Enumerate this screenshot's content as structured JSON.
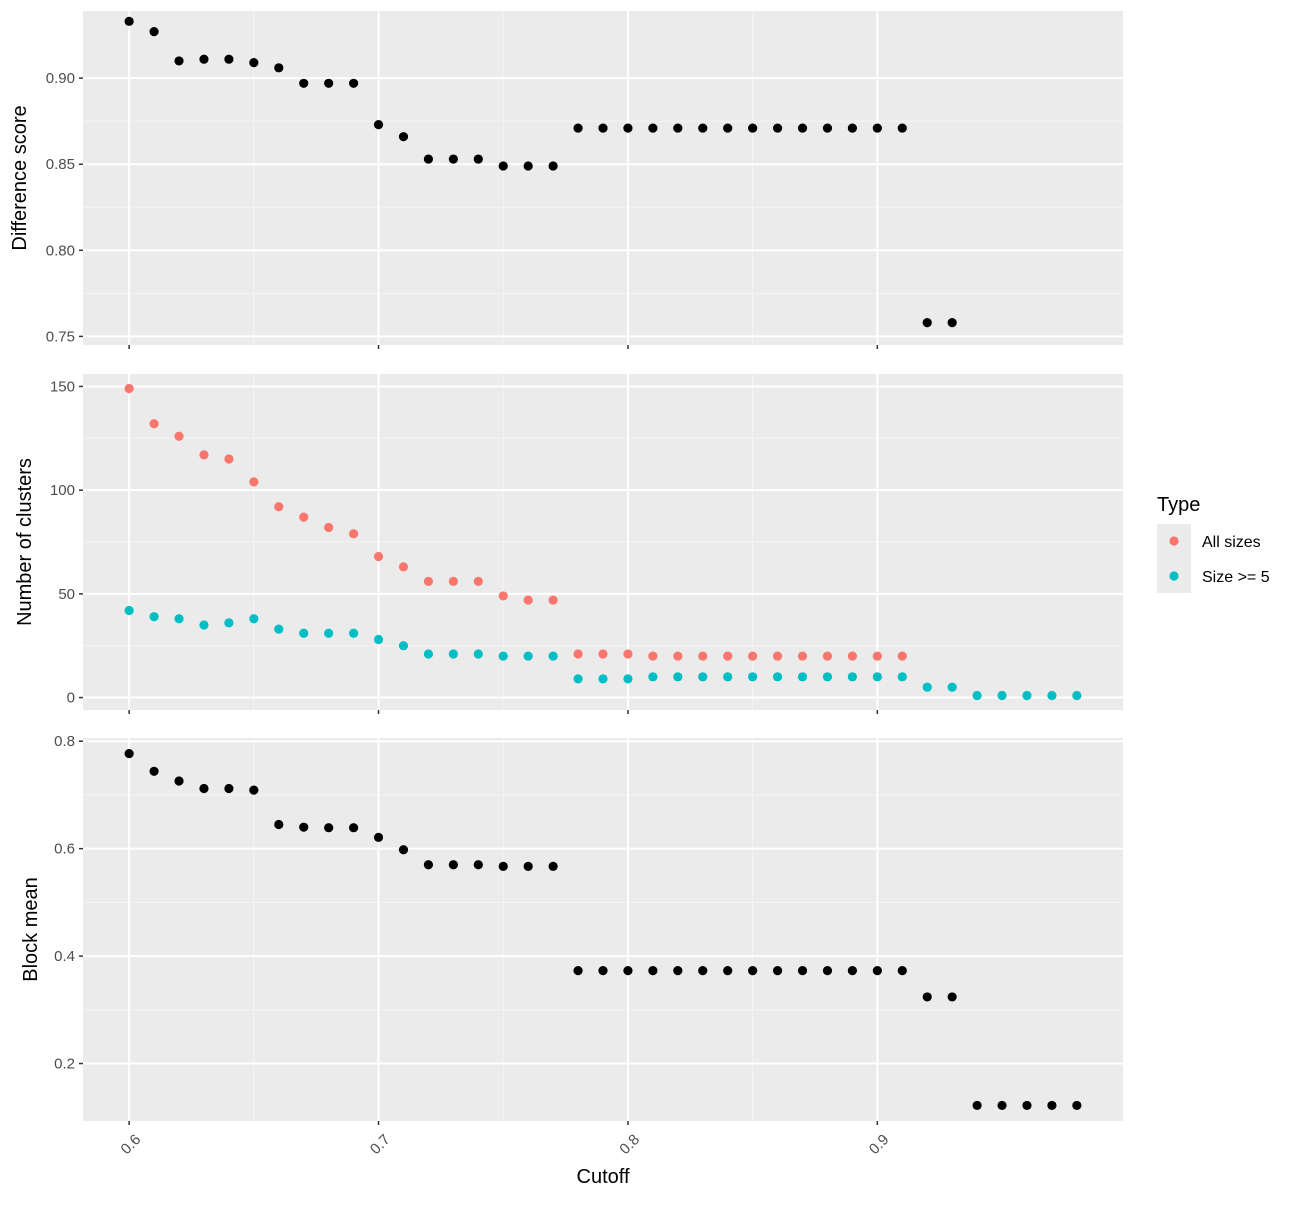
{
  "chart_data": [
    {
      "type": "scatter",
      "ylabel": "Difference score",
      "ylim": [
        0.745,
        0.939
      ],
      "yticks": [
        0.75,
        0.8,
        0.85,
        0.9
      ],
      "ytick_labels": [
        "0.75",
        "0.80",
        "0.85",
        "0.90"
      ],
      "series": [
        {
          "color": "#000000",
          "x": [
            0.6,
            0.61,
            0.62,
            0.63,
            0.64,
            0.65,
            0.66,
            0.67,
            0.68,
            0.69,
            0.7,
            0.71,
            0.72,
            0.73,
            0.74,
            0.75,
            0.76,
            0.77,
            0.78,
            0.79,
            0.8,
            0.81,
            0.82,
            0.83,
            0.84,
            0.85,
            0.86,
            0.87,
            0.88,
            0.89,
            0.9,
            0.91,
            0.92,
            0.93
          ],
          "y": [
            0.933,
            0.927,
            0.91,
            0.911,
            0.911,
            0.909,
            0.906,
            0.897,
            0.897,
            0.897,
            0.873,
            0.866,
            0.853,
            0.853,
            0.853,
            0.849,
            0.849,
            0.849,
            0.871,
            0.871,
            0.871,
            0.871,
            0.871,
            0.871,
            0.871,
            0.871,
            0.871,
            0.871,
            0.871,
            0.871,
            0.871,
            0.871,
            0.758,
            0.758
          ]
        }
      ]
    },
    {
      "type": "scatter",
      "ylabel": "Number of clusters",
      "ylim": [
        -6,
        156
      ],
      "yticks": [
        0,
        50,
        100,
        150
      ],
      "ytick_labels": [
        "0",
        "50",
        "100",
        "150"
      ],
      "series": [
        {
          "name": "All sizes",
          "color": "#F8766D",
          "x": [
            0.6,
            0.61,
            0.62,
            0.63,
            0.64,
            0.65,
            0.66,
            0.67,
            0.68,
            0.69,
            0.7,
            0.71,
            0.72,
            0.73,
            0.74,
            0.75,
            0.76,
            0.77,
            0.78,
            0.79,
            0.8,
            0.81,
            0.82,
            0.83,
            0.84,
            0.85,
            0.86,
            0.87,
            0.88,
            0.89,
            0.9,
            0.91
          ],
          "y": [
            149,
            132,
            126,
            117,
            115,
            104,
            92,
            87,
            82,
            79,
            68,
            63,
            56,
            56,
            56,
            49,
            47,
            47,
            21,
            21,
            21,
            20,
            20,
            20,
            20,
            20,
            20,
            20,
            20,
            20,
            20,
            20
          ]
        },
        {
          "name": "Size >= 5",
          "color": "#00BFC4",
          "x": [
            0.6,
            0.61,
            0.62,
            0.63,
            0.64,
            0.65,
            0.66,
            0.67,
            0.68,
            0.69,
            0.7,
            0.71,
            0.72,
            0.73,
            0.74,
            0.75,
            0.76,
            0.77,
            0.78,
            0.79,
            0.8,
            0.81,
            0.82,
            0.83,
            0.84,
            0.85,
            0.86,
            0.87,
            0.88,
            0.89,
            0.9,
            0.91,
            0.92,
            0.93,
            0.94,
            0.95,
            0.96,
            0.97,
            0.98
          ],
          "y": [
            42,
            39,
            38,
            35,
            36,
            38,
            33,
            31,
            31,
            31,
            28,
            25,
            21,
            21,
            21,
            20,
            20,
            20,
            9,
            9,
            9,
            10,
            10,
            10,
            10,
            10,
            10,
            10,
            10,
            10,
            10,
            10,
            5,
            5,
            1,
            1,
            1,
            1,
            1
          ]
        }
      ]
    },
    {
      "type": "scatter",
      "ylabel": "Block mean",
      "ylim": [
        0.093,
        0.806
      ],
      "yticks": [
        0.2,
        0.4,
        0.6,
        0.8
      ],
      "ytick_labels": [
        "0.2",
        "0.4",
        "0.6",
        "0.8"
      ],
      "series": [
        {
          "color": "#000000",
          "x": [
            0.6,
            0.61,
            0.62,
            0.63,
            0.64,
            0.65,
            0.66,
            0.67,
            0.68,
            0.69,
            0.7,
            0.71,
            0.72,
            0.73,
            0.74,
            0.75,
            0.76,
            0.77,
            0.78,
            0.79,
            0.8,
            0.81,
            0.82,
            0.83,
            0.84,
            0.85,
            0.86,
            0.87,
            0.88,
            0.89,
            0.9,
            0.91,
            0.92,
            0.93,
            0.94,
            0.95,
            0.96,
            0.97,
            0.98
          ],
          "y": [
            0.777,
            0.744,
            0.726,
            0.712,
            0.712,
            0.709,
            0.645,
            0.64,
            0.639,
            0.639,
            0.621,
            0.598,
            0.57,
            0.57,
            0.57,
            0.567,
            0.567,
            0.567,
            0.373,
            0.373,
            0.373,
            0.373,
            0.373,
            0.373,
            0.373,
            0.373,
            0.373,
            0.373,
            0.373,
            0.373,
            0.373,
            0.373,
            0.324,
            0.324,
            0.122,
            0.122,
            0.122,
            0.122,
            0.122
          ]
        }
      ]
    }
  ],
  "x_axis": {
    "title": "Cutoff",
    "xlim": [
      0.5815,
      0.9985
    ],
    "ticks": [
      0.6,
      0.7,
      0.8,
      0.9
    ],
    "tick_labels": [
      "0.6",
      "0.7",
      "0.8",
      "0.9"
    ],
    "grid": true
  },
  "legend": {
    "title": "Type",
    "placement": "right",
    "items": [
      {
        "label": "All sizes",
        "color": "#F8766D"
      },
      {
        "label": "Size >= 5",
        "color": "#00BFC4"
      }
    ]
  },
  "colors": {
    "panel_background": "#EBEBEB",
    "grid_major": "#FFFFFF",
    "grid_minor": "#F5F5F5"
  }
}
